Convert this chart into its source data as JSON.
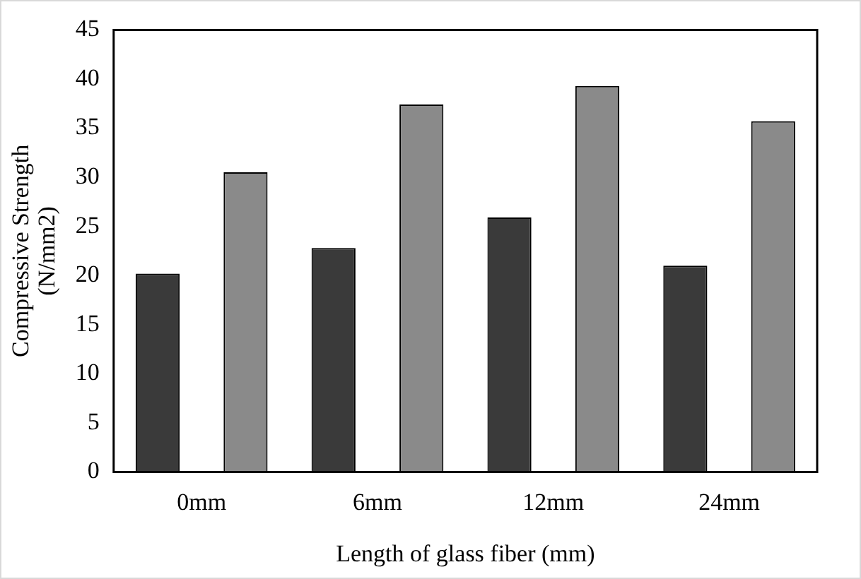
{
  "chart_data": {
    "type": "bar",
    "xlabel": "Length of glass fiber (mm)",
    "ylabel": "Compressive Strength (N/mm2)",
    "categories": [
      "0mm",
      "6mm",
      "12mm",
      "24mm"
    ],
    "series": [
      {
        "color": "#3a3a3a",
        "values": [
          20.2,
          22.8,
          25.9,
          21.0
        ]
      },
      {
        "color": "#8a8a8a",
        "values": [
          30.5,
          37.4,
          39.3,
          35.7
        ]
      }
    ],
    "ylim": [
      0,
      45
    ],
    "yticks": [
      0,
      5,
      10,
      15,
      20,
      25,
      30,
      35,
      40,
      45
    ],
    "grid": false,
    "legend": false
  }
}
